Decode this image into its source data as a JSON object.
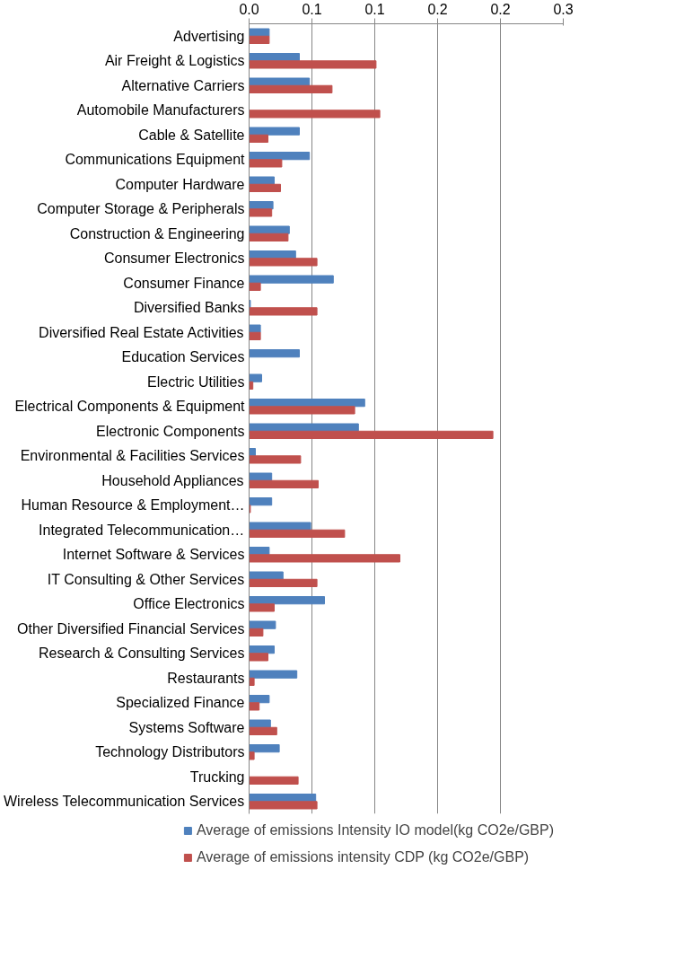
{
  "chart_data": {
    "type": "bar",
    "orientation": "horizontal",
    "categories": [
      "Advertising",
      "Air Freight & Logistics",
      "Alternative Carriers",
      "Automobile Manufacturers",
      "Cable & Satellite",
      "Communications Equipment",
      "Computer Hardware",
      "Computer Storage & Peripherals",
      "Construction & Engineering",
      "Consumer Electronics",
      "Consumer Finance",
      "Diversified Banks",
      "Diversified Real Estate Activities",
      "Education Services",
      "Electric Utilities",
      "Electrical Components & Equipment",
      "Electronic Components",
      "Environmental & Facilities Services",
      "Household Appliances",
      "Human Resource & Employment…",
      "Integrated Telecommunication…",
      "Internet Software & Services",
      "IT Consulting & Other Services",
      "Office Electronics",
      "Other Diversified Financial Services",
      "Research & Consulting Services",
      "Restaurants",
      "Specialized Finance",
      "Systems Software",
      "Technology Distributors",
      "Trucking",
      "Wireless Telecommunication Services"
    ],
    "series": [
      {
        "name": "Average of emissions Intensity IO model(kg CO2e/GBP)",
        "color": "#4f81bd",
        "values": [
          0.016,
          0.04,
          0.048,
          null,
          0.04,
          0.048,
          0.02,
          0.019,
          0.032,
          0.037,
          0.067,
          0.001,
          0.009,
          0.04,
          0.01,
          0.092,
          0.087,
          0.005,
          0.018,
          0.018,
          0.049,
          0.016,
          0.027,
          0.06,
          0.021,
          0.02,
          0.038,
          0.016,
          0.017,
          0.024,
          null,
          0.053
        ]
      },
      {
        "name": "Average of emissions intensity CDP (kg CO2e/GBP)",
        "color": "#c0504d",
        "values": [
          0.016,
          0.101,
          0.066,
          0.104,
          0.015,
          0.026,
          0.025,
          0.018,
          0.031,
          0.054,
          0.009,
          0.054,
          0.009,
          null,
          0.003,
          0.084,
          0.194,
          0.041,
          0.055,
          0.001,
          0.076,
          0.12,
          0.054,
          0.02,
          0.011,
          0.015,
          0.004,
          0.008,
          0.022,
          0.004,
          0.039,
          0.054
        ]
      }
    ],
    "xlim": [
      0,
      0.25
    ],
    "xticks": [
      {
        "value": 0,
        "label": "0.0"
      },
      {
        "value": 0.05,
        "label": "0.1"
      },
      {
        "value": 0.1,
        "label": "0.1"
      },
      {
        "value": 0.15,
        "label": "0.2"
      },
      {
        "value": 0.2,
        "label": "0.2"
      },
      {
        "value": 0.25,
        "label": "0.3"
      }
    ],
    "grid": "x",
    "legend": "bottom"
  }
}
